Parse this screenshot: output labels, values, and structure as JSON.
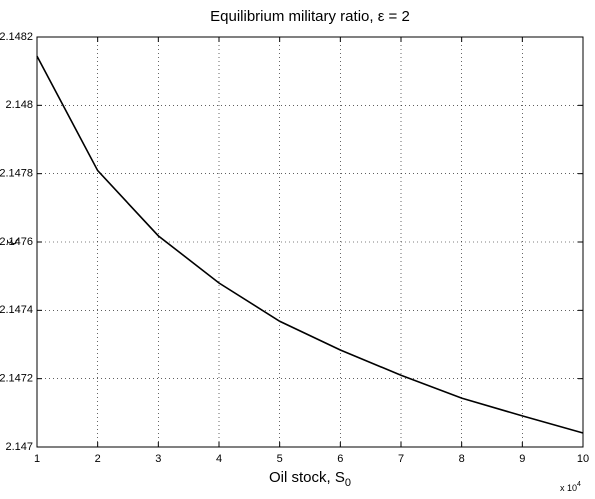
{
  "chart_data": {
    "type": "line",
    "title": "Equilibrium military ratio, ε = 2",
    "xlabel": {
      "text": "Oil stock, S",
      "sub": "0"
    },
    "ylabel": "ξ",
    "x_multiplier": {
      "text": "x 10",
      "exp": "4"
    },
    "x": [
      1,
      2,
      3,
      4,
      5,
      6,
      7,
      8,
      9,
      10
    ],
    "series": [
      {
        "color": "#000000",
        "values": [
          2.148144,
          2.147809,
          2.147618,
          2.14748,
          2.147368,
          2.147284,
          2.14721,
          2.147143,
          2.147091,
          2.147041
        ]
      }
    ],
    "xlim": [
      1,
      10
    ],
    "xticks": [
      1,
      2,
      3,
      4,
      5,
      6,
      7,
      8,
      9,
      10
    ],
    "ylim": [
      2.147,
      2.1482
    ],
    "yticks": [
      2.147,
      2.1472,
      2.1474,
      2.1476,
      2.1478,
      2.148,
      2.1482
    ],
    "grid": true
  }
}
